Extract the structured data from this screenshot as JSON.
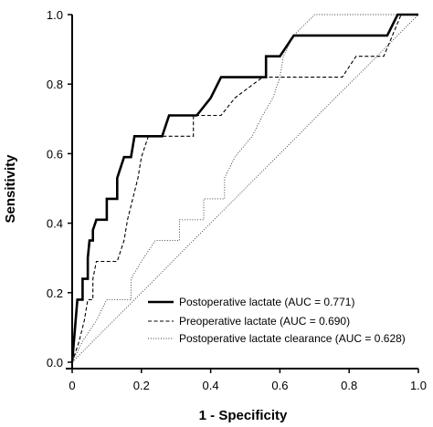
{
  "chart_data": {
    "type": "line",
    "xlabel": "1 - Specificity",
    "ylabel": "Sensitivity",
    "xlim": [
      0,
      1
    ],
    "ylim": [
      0,
      1
    ],
    "x_ticks": [
      "0",
      "0.2",
      "0.4",
      "0.6",
      "0.8",
      "1.0"
    ],
    "y_ticks": [
      "0.0",
      "0.2",
      "0.4",
      "0.6",
      "0.8",
      "1.0"
    ],
    "grid": false,
    "legend_position": "bottom-right",
    "reference_line": {
      "style": "dotted",
      "points": [
        [
          0,
          0
        ],
        [
          1,
          1
        ]
      ]
    },
    "series": [
      {
        "name": "Postoperative lactate (AUC = 0.771)",
        "style": "solid-thick",
        "points": [
          [
            0,
            0
          ],
          [
            0.005,
            0.06
          ],
          [
            0.01,
            0.12
          ],
          [
            0.015,
            0.18
          ],
          [
            0.03,
            0.18
          ],
          [
            0.03,
            0.24
          ],
          [
            0.045,
            0.24
          ],
          [
            0.045,
            0.3
          ],
          [
            0.05,
            0.35
          ],
          [
            0.06,
            0.35
          ],
          [
            0.06,
            0.38
          ],
          [
            0.07,
            0.41
          ],
          [
            0.1,
            0.41
          ],
          [
            0.1,
            0.47
          ],
          [
            0.13,
            0.47
          ],
          [
            0.13,
            0.53
          ],
          [
            0.15,
            0.59
          ],
          [
            0.17,
            0.59
          ],
          [
            0.18,
            0.65
          ],
          [
            0.26,
            0.65
          ],
          [
            0.28,
            0.71
          ],
          [
            0.36,
            0.71
          ],
          [
            0.4,
            0.76
          ],
          [
            0.43,
            0.82
          ],
          [
            0.56,
            0.82
          ],
          [
            0.56,
            0.88
          ],
          [
            0.6,
            0.88
          ],
          [
            0.64,
            0.94
          ],
          [
            0.91,
            0.94
          ],
          [
            0.94,
            1.0
          ],
          [
            1.0,
            1.0
          ]
        ]
      },
      {
        "name": "Preoperative lactate (AUC = 0.690)",
        "style": "dashed",
        "points": [
          [
            0,
            0
          ],
          [
            0.02,
            0.06
          ],
          [
            0.035,
            0.12
          ],
          [
            0.045,
            0.18
          ],
          [
            0.06,
            0.18
          ],
          [
            0.06,
            0.24
          ],
          [
            0.07,
            0.29
          ],
          [
            0.13,
            0.29
          ],
          [
            0.15,
            0.35
          ],
          [
            0.16,
            0.41
          ],
          [
            0.19,
            0.53
          ],
          [
            0.2,
            0.59
          ],
          [
            0.22,
            0.65
          ],
          [
            0.35,
            0.65
          ],
          [
            0.35,
            0.71
          ],
          [
            0.43,
            0.71
          ],
          [
            0.47,
            0.76
          ],
          [
            0.55,
            0.82
          ],
          [
            0.78,
            0.82
          ],
          [
            0.82,
            0.88
          ],
          [
            0.9,
            0.88
          ],
          [
            0.95,
            1.0
          ],
          [
            1.0,
            1.0
          ]
        ]
      },
      {
        "name": "Postoperative lactate clearance (AUC = 0.628)",
        "style": "dotted",
        "points": [
          [
            0,
            0
          ],
          [
            0.03,
            0.06
          ],
          [
            0.07,
            0.12
          ],
          [
            0.1,
            0.18
          ],
          [
            0.17,
            0.18
          ],
          [
            0.17,
            0.24
          ],
          [
            0.2,
            0.29
          ],
          [
            0.24,
            0.35
          ],
          [
            0.31,
            0.35
          ],
          [
            0.31,
            0.41
          ],
          [
            0.38,
            0.41
          ],
          [
            0.38,
            0.47
          ],
          [
            0.44,
            0.47
          ],
          [
            0.44,
            0.53
          ],
          [
            0.47,
            0.59
          ],
          [
            0.52,
            0.65
          ],
          [
            0.55,
            0.71
          ],
          [
            0.58,
            0.76
          ],
          [
            0.6,
            0.82
          ],
          [
            0.61,
            0.88
          ],
          [
            0.64,
            0.94
          ],
          [
            0.7,
            1.0
          ],
          [
            1.0,
            1.0
          ]
        ]
      }
    ]
  }
}
